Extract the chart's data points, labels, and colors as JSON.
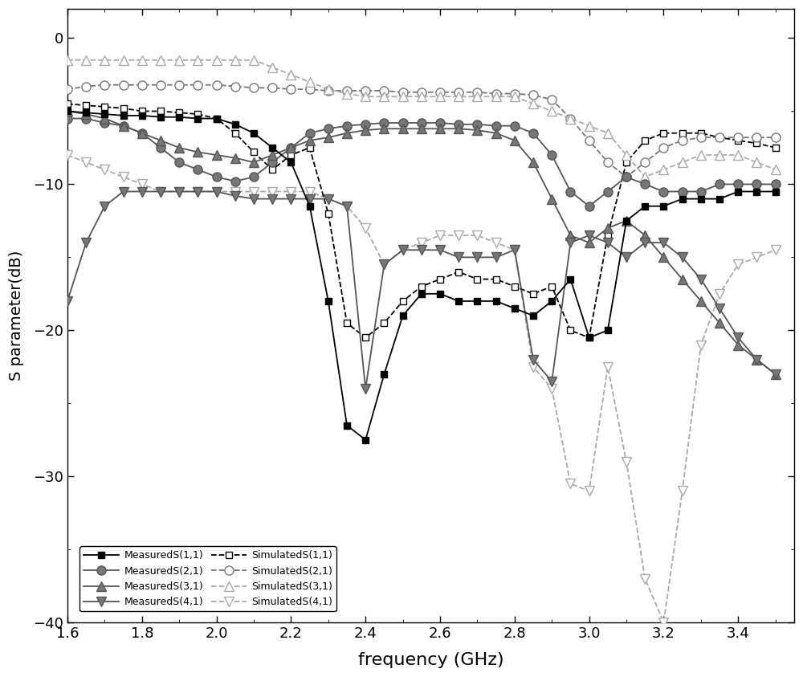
{
  "xlim": [
    1.6,
    3.55
  ],
  "ylim": [
    -40,
    2
  ],
  "xlabel": "frequency (GHz)",
  "ylabel": "S parameter(dB)",
  "xticks": [
    1.6,
    1.8,
    2.0,
    2.2,
    2.4,
    2.6,
    2.8,
    3.0,
    3.2,
    3.4
  ],
  "yticks": [
    0,
    -10,
    -20,
    -30,
    -40
  ],
  "meas_S11_x": [
    1.6,
    1.65,
    1.7,
    1.75,
    1.8,
    1.85,
    1.9,
    1.95,
    2.0,
    2.05,
    2.1,
    2.15,
    2.2,
    2.25,
    2.3,
    2.35,
    2.4,
    2.45,
    2.5,
    2.55,
    2.6,
    2.65,
    2.7,
    2.75,
    2.8,
    2.85,
    2.9,
    2.95,
    3.0,
    3.05,
    3.1,
    3.15,
    3.2,
    3.25,
    3.3,
    3.35,
    3.4,
    3.45,
    3.5
  ],
  "meas_S11_y": [
    -5.0,
    -5.1,
    -5.2,
    -5.3,
    -5.3,
    -5.4,
    -5.4,
    -5.5,
    -5.5,
    -5.9,
    -6.5,
    -7.5,
    -8.5,
    -11.5,
    -18.0,
    -26.5,
    -27.5,
    -23.0,
    -19.0,
    -17.5,
    -17.5,
    -18.0,
    -18.0,
    -18.0,
    -18.5,
    -19.0,
    -18.0,
    -16.5,
    -20.5,
    -20.0,
    -12.5,
    -11.5,
    -11.5,
    -11.0,
    -11.0,
    -11.0,
    -10.5,
    -10.5,
    -10.5
  ],
  "meas_S21_x": [
    1.6,
    1.65,
    1.7,
    1.75,
    1.8,
    1.85,
    1.9,
    1.95,
    2.0,
    2.05,
    2.1,
    2.15,
    2.2,
    2.25,
    2.3,
    2.35,
    2.4,
    2.45,
    2.5,
    2.55,
    2.6,
    2.65,
    2.7,
    2.75,
    2.8,
    2.85,
    2.9,
    2.95,
    3.0,
    3.05,
    3.1,
    3.15,
    3.2,
    3.25,
    3.3,
    3.35,
    3.4,
    3.45,
    3.5
  ],
  "meas_S21_y": [
    -5.5,
    -5.5,
    -5.8,
    -6.0,
    -6.5,
    -7.5,
    -8.5,
    -9.0,
    -9.5,
    -9.8,
    -9.5,
    -8.5,
    -7.5,
    -6.5,
    -6.2,
    -6.0,
    -5.9,
    -5.8,
    -5.8,
    -5.8,
    -5.8,
    -5.9,
    -5.9,
    -6.0,
    -6.0,
    -6.5,
    -8.0,
    -10.5,
    -11.5,
    -10.5,
    -9.5,
    -10.0,
    -10.5,
    -10.5,
    -10.5,
    -10.0,
    -10.0,
    -10.0,
    -10.0
  ],
  "meas_S31_x": [
    1.6,
    1.65,
    1.7,
    1.75,
    1.8,
    1.85,
    1.9,
    1.95,
    2.0,
    2.05,
    2.1,
    2.15,
    2.2,
    2.25,
    2.3,
    2.35,
    2.4,
    2.45,
    2.5,
    2.55,
    2.6,
    2.65,
    2.7,
    2.75,
    2.8,
    2.85,
    2.9,
    2.95,
    3.0,
    3.05,
    3.1,
    3.15,
    3.2,
    3.25,
    3.3,
    3.35,
    3.4,
    3.45,
    3.5
  ],
  "meas_S31_y": [
    -5.0,
    -5.2,
    -5.5,
    -6.0,
    -6.5,
    -7.0,
    -7.5,
    -7.8,
    -8.0,
    -8.2,
    -8.5,
    -8.0,
    -7.5,
    -7.0,
    -6.8,
    -6.5,
    -6.3,
    -6.2,
    -6.2,
    -6.2,
    -6.2,
    -6.2,
    -6.3,
    -6.5,
    -7.0,
    -8.5,
    -11.0,
    -13.5,
    -14.0,
    -13.0,
    -12.5,
    -13.5,
    -15.0,
    -16.5,
    -18.0,
    -19.5,
    -21.0,
    -22.0,
    -23.0
  ],
  "meas_S41_x": [
    1.6,
    1.65,
    1.7,
    1.75,
    1.8,
    1.85,
    1.9,
    1.95,
    2.0,
    2.05,
    2.1,
    2.15,
    2.2,
    2.25,
    2.3,
    2.35,
    2.4,
    2.45,
    2.5,
    2.55,
    2.6,
    2.65,
    2.7,
    2.75,
    2.8,
    2.85,
    2.9,
    2.95,
    3.0,
    3.05,
    3.1,
    3.15,
    3.2,
    3.25,
    3.3,
    3.35,
    3.4,
    3.45,
    3.5
  ],
  "meas_S41_y": [
    -18.0,
    -14.0,
    -11.5,
    -10.5,
    -10.5,
    -10.5,
    -10.5,
    -10.5,
    -10.5,
    -10.8,
    -11.0,
    -11.0,
    -11.0,
    -11.0,
    -11.0,
    -11.5,
    -24.0,
    -15.5,
    -14.5,
    -14.5,
    -14.5,
    -15.0,
    -15.0,
    -15.0,
    -14.5,
    -22.0,
    -23.5,
    -14.0,
    -13.5,
    -14.0,
    -15.0,
    -14.0,
    -14.0,
    -15.0,
    -16.5,
    -18.5,
    -20.5,
    -22.0,
    -23.0
  ],
  "sim_S11_x": [
    1.6,
    1.65,
    1.7,
    1.75,
    1.8,
    1.85,
    1.9,
    1.95,
    2.0,
    2.05,
    2.1,
    2.15,
    2.2,
    2.25,
    2.3,
    2.35,
    2.4,
    2.45,
    2.5,
    2.55,
    2.6,
    2.65,
    2.7,
    2.75,
    2.8,
    2.85,
    2.9,
    2.95,
    3.0,
    3.05,
    3.1,
    3.15,
    3.2,
    3.25,
    3.3,
    3.35,
    3.4,
    3.45,
    3.5
  ],
  "sim_S11_y": [
    -4.5,
    -4.6,
    -4.7,
    -4.8,
    -5.0,
    -5.0,
    -5.1,
    -5.2,
    -5.5,
    -6.5,
    -7.8,
    -9.0,
    -8.0,
    -7.5,
    -12.0,
    -19.5,
    -20.5,
    -19.5,
    -18.0,
    -17.0,
    -16.5,
    -16.0,
    -16.5,
    -16.5,
    -17.0,
    -17.5,
    -17.0,
    -20.0,
    -20.5,
    -13.5,
    -8.5,
    -7.0,
    -6.5,
    -6.5,
    -6.5,
    -6.8,
    -7.0,
    -7.2,
    -7.5
  ],
  "sim_S21_x": [
    1.6,
    1.65,
    1.7,
    1.75,
    1.8,
    1.85,
    1.9,
    1.95,
    2.0,
    2.05,
    2.1,
    2.15,
    2.2,
    2.25,
    2.3,
    2.35,
    2.4,
    2.45,
    2.5,
    2.55,
    2.6,
    2.65,
    2.7,
    2.75,
    2.8,
    2.85,
    2.9,
    2.95,
    3.0,
    3.05,
    3.1,
    3.15,
    3.2,
    3.25,
    3.3,
    3.35,
    3.4,
    3.45,
    3.5
  ],
  "sim_S21_y": [
    -3.5,
    -3.3,
    -3.2,
    -3.2,
    -3.2,
    -3.2,
    -3.2,
    -3.2,
    -3.2,
    -3.3,
    -3.4,
    -3.4,
    -3.5,
    -3.5,
    -3.6,
    -3.6,
    -3.6,
    -3.6,
    -3.7,
    -3.7,
    -3.7,
    -3.7,
    -3.7,
    -3.8,
    -3.8,
    -3.9,
    -4.2,
    -5.5,
    -7.0,
    -8.5,
    -9.5,
    -8.5,
    -7.5,
    -7.0,
    -6.8,
    -6.8,
    -6.8,
    -6.8,
    -6.8
  ],
  "sim_S31_x": [
    1.6,
    1.65,
    1.7,
    1.75,
    1.8,
    1.85,
    1.9,
    1.95,
    2.0,
    2.05,
    2.1,
    2.15,
    2.2,
    2.25,
    2.3,
    2.35,
    2.4,
    2.45,
    2.5,
    2.55,
    2.6,
    2.65,
    2.7,
    2.75,
    2.8,
    2.85,
    2.9,
    2.95,
    3.0,
    3.05,
    3.1,
    3.15,
    3.2,
    3.25,
    3.3,
    3.35,
    3.4,
    3.45,
    3.5
  ],
  "sim_S31_y": [
    -1.5,
    -1.5,
    -1.5,
    -1.5,
    -1.5,
    -1.5,
    -1.5,
    -1.5,
    -1.5,
    -1.5,
    -1.5,
    -2.0,
    -2.5,
    -3.0,
    -3.5,
    -3.8,
    -4.0,
    -4.0,
    -4.0,
    -4.0,
    -4.0,
    -4.0,
    -4.0,
    -4.0,
    -4.0,
    -4.5,
    -5.0,
    -5.5,
    -6.0,
    -6.5,
    -8.0,
    -9.5,
    -9.0,
    -8.5,
    -8.0,
    -8.0,
    -8.0,
    -8.5,
    -9.0
  ],
  "sim_S41_x": [
    1.6,
    1.65,
    1.7,
    1.75,
    1.8,
    1.85,
    1.9,
    1.95,
    2.0,
    2.05,
    2.1,
    2.15,
    2.2,
    2.25,
    2.3,
    2.35,
    2.4,
    2.45,
    2.5,
    2.55,
    2.6,
    2.65,
    2.7,
    2.75,
    2.8,
    2.85,
    2.9,
    2.95,
    3.0,
    3.05,
    3.1,
    3.15,
    3.2,
    3.25,
    3.3,
    3.35,
    3.4,
    3.45,
    3.5
  ],
  "sim_S41_y": [
    -8.0,
    -8.5,
    -9.0,
    -9.5,
    -10.0,
    -10.5,
    -10.5,
    -10.5,
    -10.5,
    -10.5,
    -10.5,
    -10.5,
    -10.5,
    -10.5,
    -11.0,
    -11.5,
    -13.0,
    -15.5,
    -14.5,
    -14.0,
    -13.5,
    -13.5,
    -13.5,
    -14.0,
    -14.5,
    -22.5,
    -24.0,
    -30.5,
    -31.0,
    -22.5,
    -29.0,
    -37.0,
    -40.0,
    -31.0,
    -21.0,
    -17.5,
    -15.5,
    -15.0,
    -14.5
  ],
  "bg_color": "#ffffff"
}
